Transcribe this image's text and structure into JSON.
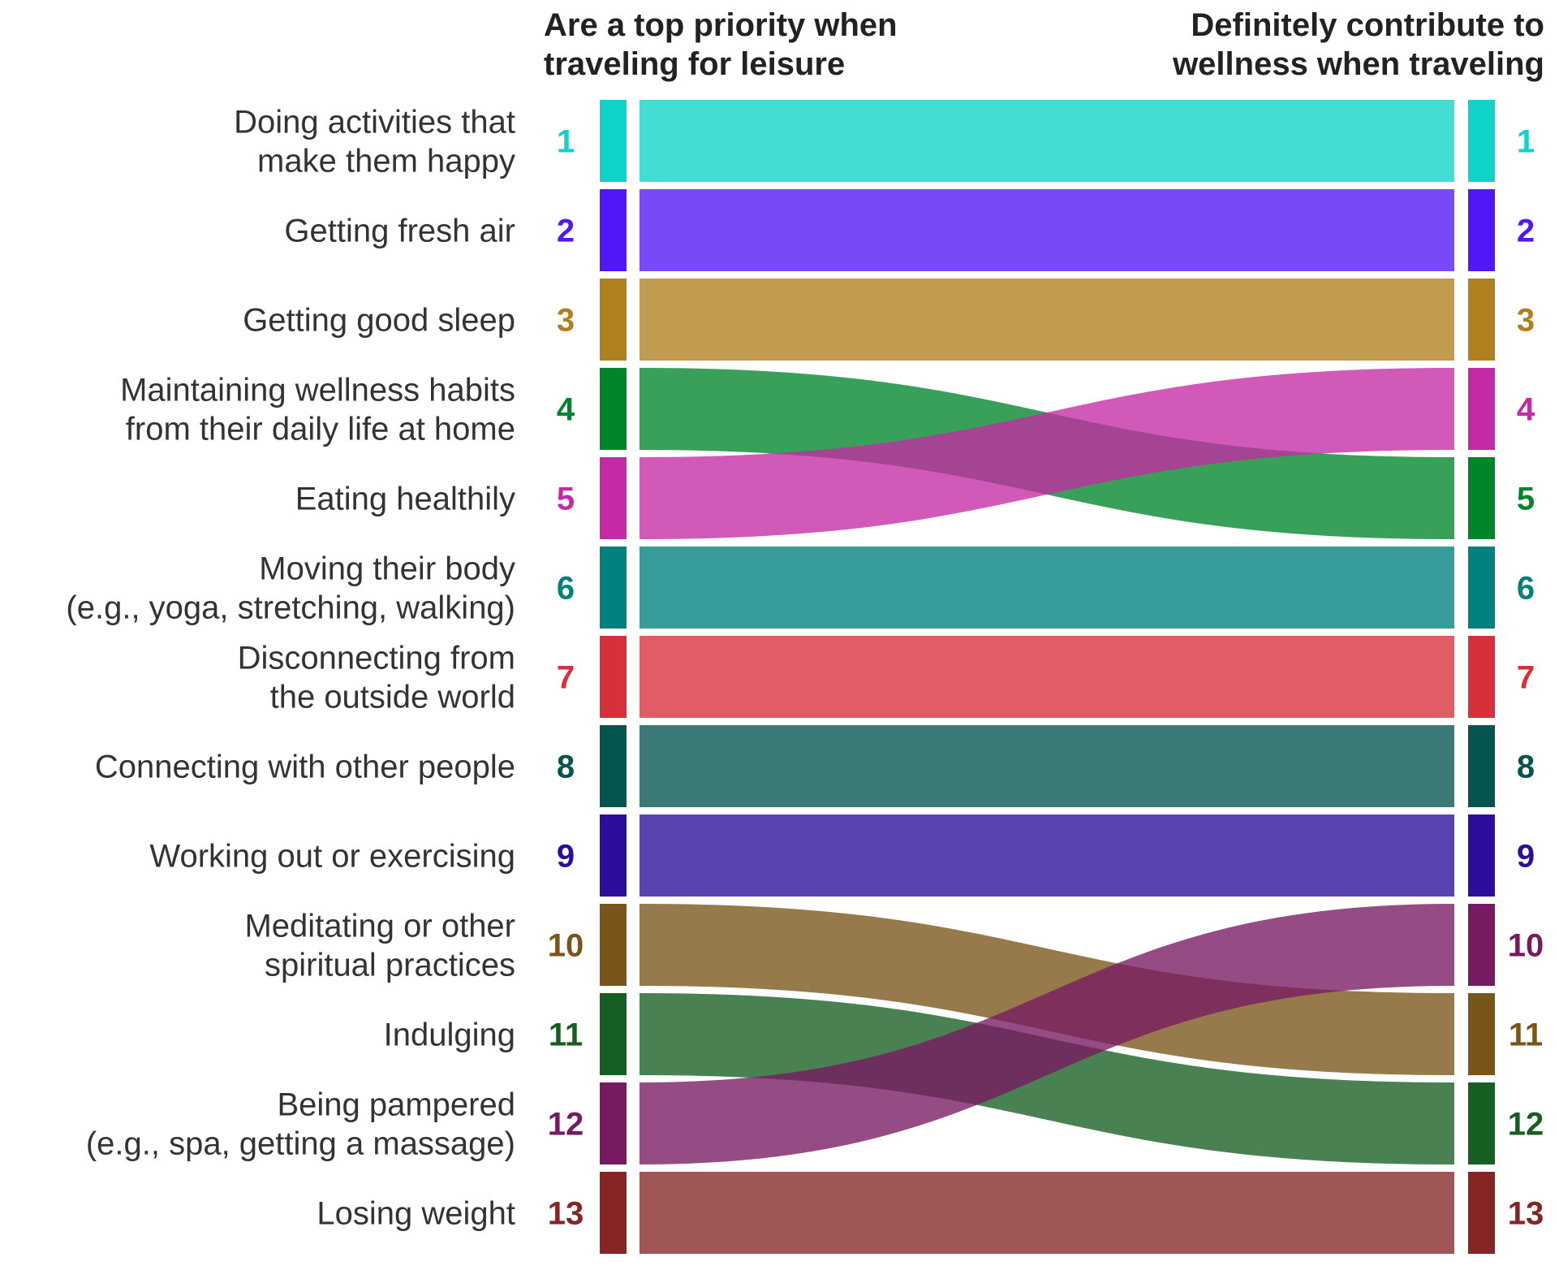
{
  "chart_data": {
    "type": "sankey",
    "left_title": [
      "Are a top priority when",
      "traveling for leisure"
    ],
    "right_title": [
      "Definitely contribute to",
      "wellness when traveling"
    ],
    "items": [
      {
        "label": [
          "Doing activities that",
          "make them happy"
        ],
        "left_rank": 1,
        "right_rank": 1,
        "color": "#0FD3C8"
      },
      {
        "label": [
          "Getting fresh air"
        ],
        "left_rank": 2,
        "right_rank": 2,
        "color": "#5217F5"
      },
      {
        "label": [
          "Getting good sleep"
        ],
        "left_rank": 3,
        "right_rank": 3,
        "color": "#B07F1E"
      },
      {
        "label": [
          "Maintaining wellness habits",
          "from their daily life at home"
        ],
        "left_rank": 4,
        "right_rank": 5,
        "color": "#00852A"
      },
      {
        "label": [
          "Eating healthily"
        ],
        "left_rank": 5,
        "right_rank": 4,
        "color": "#C42AA4"
      },
      {
        "label": [
          "Moving their body",
          "(e.g., yoga, stretching, walking)"
        ],
        "left_rank": 6,
        "right_rank": 6,
        "color": "#00807F"
      },
      {
        "label": [
          "Disconnecting from",
          "the outside world"
        ],
        "left_rank": 7,
        "right_rank": 7,
        "color": "#D7303A"
      },
      {
        "label": [
          "Connecting with other people"
        ],
        "left_rank": 8,
        "right_rank": 8,
        "color": "#045550"
      },
      {
        "label": [
          "Working out or exercising"
        ],
        "left_rank": 9,
        "right_rank": 9,
        "color": "#2C0E9A"
      },
      {
        "label": [
          "Meditating or other",
          "spiritual practices"
        ],
        "left_rank": 10,
        "right_rank": 11,
        "color": "#7A5519"
      },
      {
        "label": [
          "Indulging"
        ],
        "left_rank": 11,
        "right_rank": 12,
        "color": "#175E22"
      },
      {
        "label": [
          "Being pampered",
          "(e.g., spa, getting a massage)"
        ],
        "left_rank": 12,
        "right_rank": 10,
        "color": "#771A62"
      },
      {
        "label": [
          "Losing weight"
        ],
        "left_rank": 13,
        "right_rank": 13,
        "color": "#852624"
      }
    ]
  }
}
